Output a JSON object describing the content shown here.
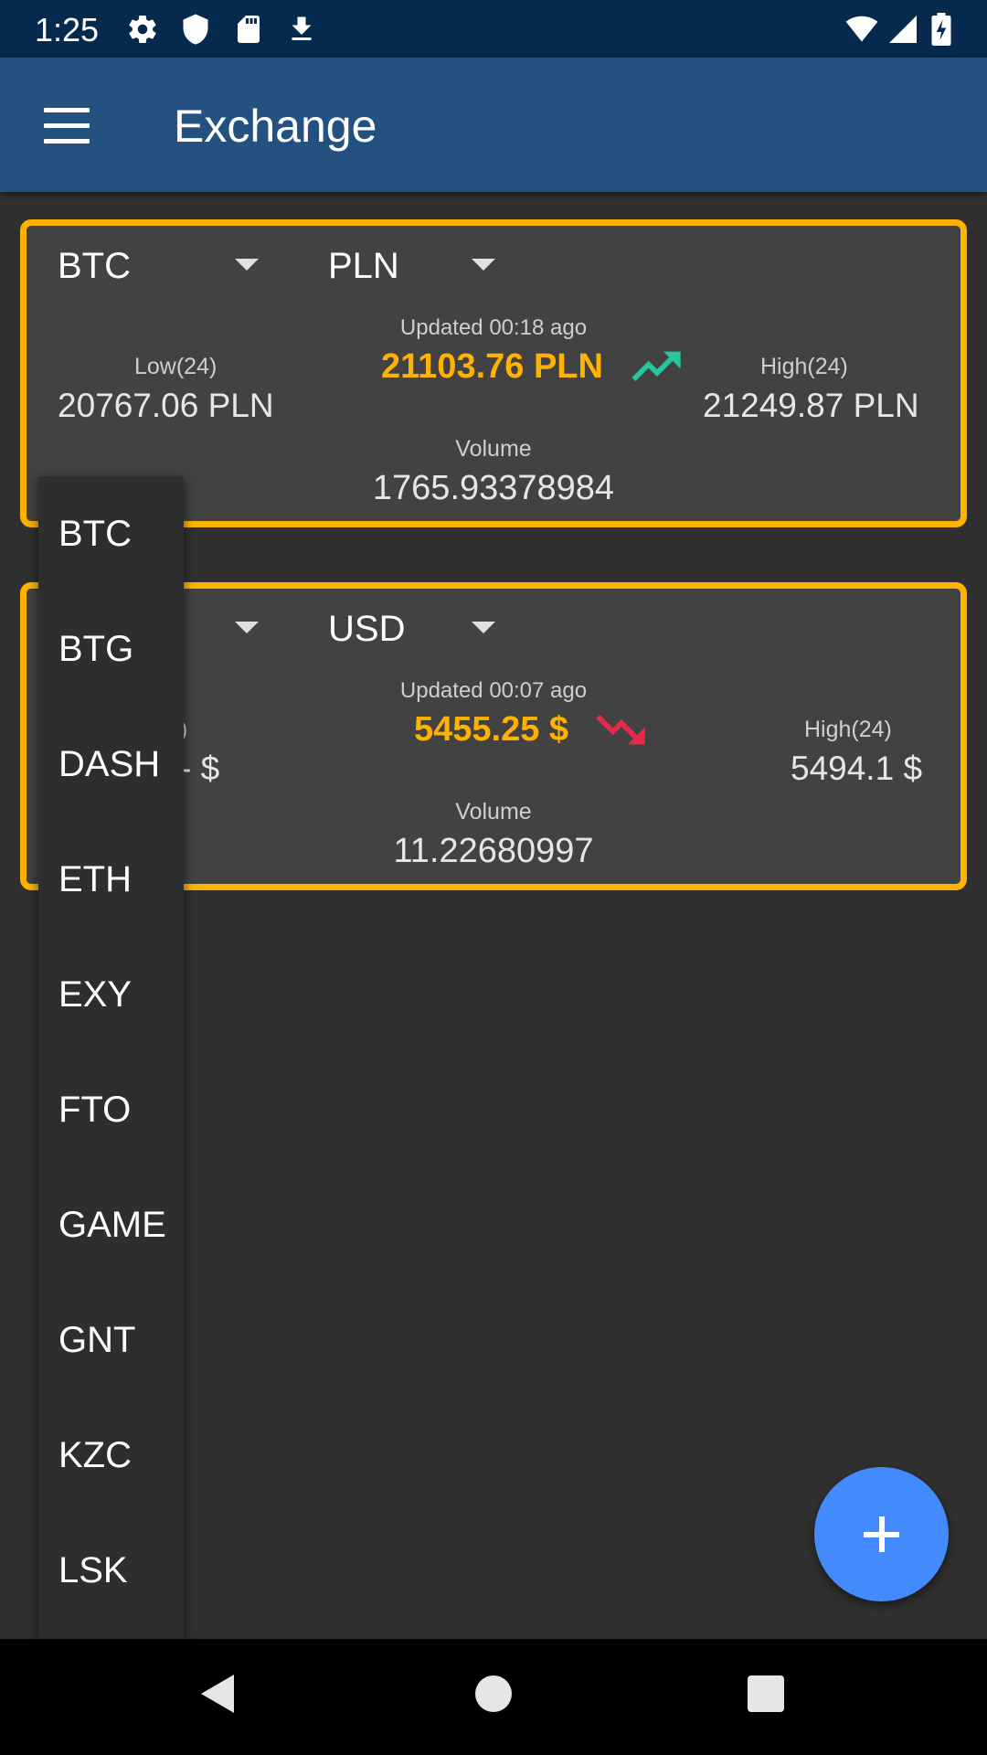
{
  "status_bar": {
    "time": "1:25",
    "icons": [
      "gear-icon",
      "shield-icon",
      "sd-card-icon",
      "download-icon",
      "wifi-icon",
      "signal-icon",
      "battery-icon"
    ]
  },
  "app_bar": {
    "title": "Exchange",
    "menu_icon": "menu-icon"
  },
  "cards": [
    {
      "base_currency": "BTC",
      "quote_currency": "PLN",
      "updated": "Updated 00:18 ago",
      "price": "21103.76 PLN",
      "trend": "up",
      "trend_color": "#26c6a0",
      "low_label": "Low(24)",
      "low_value": "20767.06 PLN",
      "high_label": "High(24)",
      "high_value": "21249.87 PLN",
      "volume_label": "Volume",
      "volume_value": "1765.93378984"
    },
    {
      "quote_currency": "USD",
      "updated": "Updated 00:07 ago",
      "price": "5455.25 $",
      "trend": "down",
      "trend_color": "#e8294a",
      "low_label": ")",
      "low_value": "- $",
      "high_label": "High(24)",
      "high_value": "5494.1 $",
      "volume_label": "Volume",
      "volume_value": "11.22680997"
    }
  ],
  "dropdown": {
    "options": [
      "BTC",
      "BTG",
      "DASH",
      "ETH",
      "EXY",
      "FTO",
      "GAME",
      "GNT",
      "KZC",
      "LSK"
    ]
  },
  "fab": {
    "icon": "plus-icon"
  },
  "nav_bar": {
    "icons": [
      "back-icon",
      "home-icon",
      "recents-icon"
    ]
  },
  "colors": {
    "status_bar": "#062a4d",
    "app_bar": "#245280",
    "card_border": "#ffb300",
    "card_bg": "#424242",
    "price": "#ffb300",
    "fab": "#448aff",
    "background": "#303030"
  }
}
